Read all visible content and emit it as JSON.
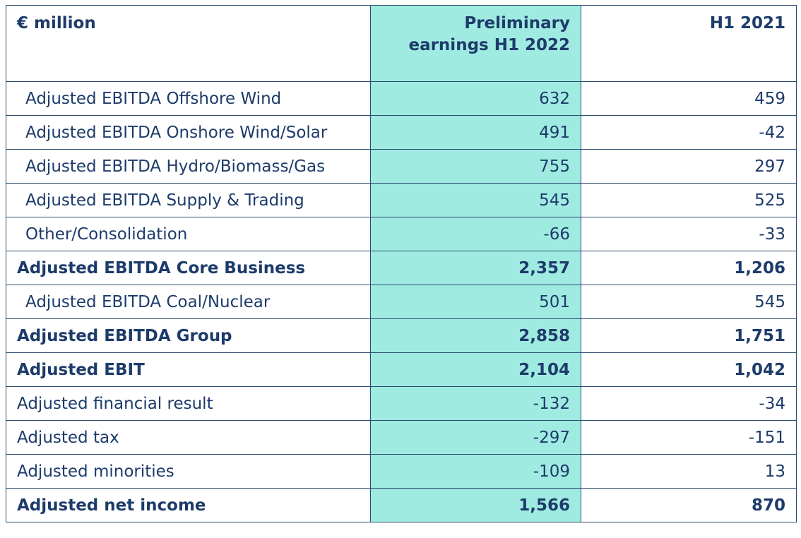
{
  "table": {
    "header": [
      "€ million",
      "Preliminary earnings H1 2022",
      "H1 2021"
    ],
    "rows": [
      {
        "label": "Adjusted EBITDA Offshore Wind",
        "values": [
          "632",
          "459"
        ],
        "indent": true,
        "bold": false
      },
      {
        "label": "Adjusted EBITDA Onshore Wind/Solar",
        "values": [
          "491",
          "-42"
        ],
        "indent": true,
        "bold": false
      },
      {
        "label": "Adjusted EBITDA Hydro/Biomass/Gas",
        "values": [
          "755",
          "297"
        ],
        "indent": true,
        "bold": false
      },
      {
        "label": "Adjusted EBITDA Supply & Trading",
        "values": [
          "545",
          "525"
        ],
        "indent": true,
        "bold": false
      },
      {
        "label": "Other/Consolidation",
        "values": [
          "-66",
          "-33"
        ],
        "indent": true,
        "bold": false
      },
      {
        "label": "Adjusted EBITDA Core Business",
        "values": [
          "2,357",
          "1,206"
        ],
        "indent": false,
        "bold": true
      },
      {
        "label": "Adjusted EBITDA Coal/Nuclear",
        "values": [
          "501",
          "545"
        ],
        "indent": true,
        "bold": false
      },
      {
        "label": "Adjusted EBITDA Group",
        "values": [
          "2,858",
          "1,751"
        ],
        "indent": false,
        "bold": true
      },
      {
        "label": "Adjusted EBIT",
        "values": [
          "2,104",
          "1,042"
        ],
        "indent": false,
        "bold": true
      },
      {
        "label": "Adjusted financial result",
        "values": [
          "-132",
          "-34"
        ],
        "indent": false,
        "bold": false
      },
      {
        "label": "Adjusted tax",
        "values": [
          "-297",
          "-151"
        ],
        "indent": false,
        "bold": false
      },
      {
        "label": "Adjusted minorities",
        "values": [
          "-109",
          "13"
        ],
        "indent": false,
        "bold": false
      },
      {
        "label": "Adjusted net income",
        "values": [
          "1,566",
          "870"
        ],
        "indent": false,
        "bold": true
      }
    ],
    "highlight_column": 1,
    "highlight_color": "#a0ebe1"
  }
}
